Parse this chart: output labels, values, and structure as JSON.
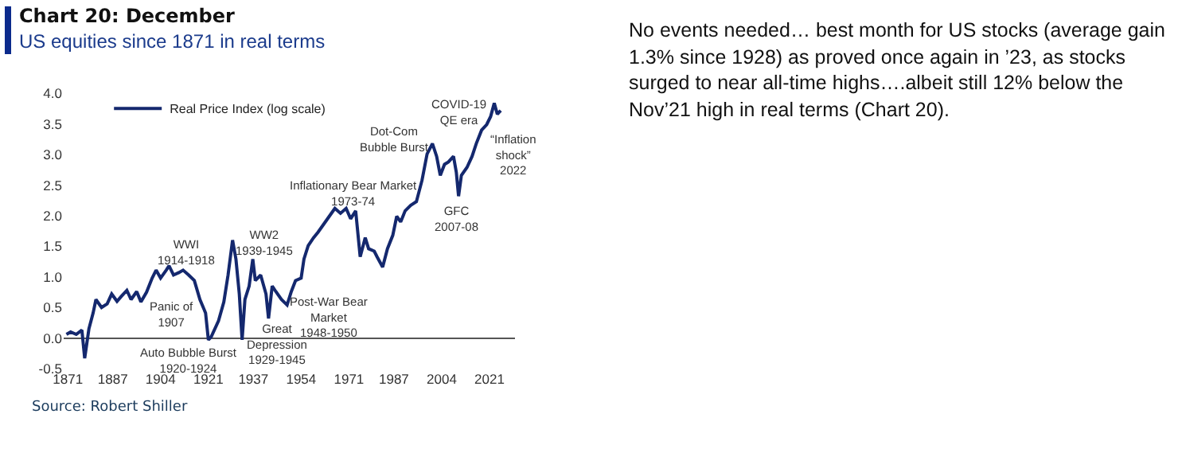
{
  "chart_data": {
    "type": "line",
    "title": "Chart 20: December",
    "subtitle": "US equities since 1871 in real terms",
    "x": [
      1870.5,
      1872,
      1874,
      1876,
      1877,
      1878.5,
      1880,
      1881,
      1883,
      1885,
      1886.6,
      1888.5,
      1890,
      1892,
      1893.5,
      1895.5,
      1897,
      1899,
      1901,
      1902.4,
      1904,
      1906,
      1907,
      1908.6,
      1910.5,
      1912,
      1914,
      1916,
      1918,
      1920,
      1921,
      1922,
      1924.6,
      1926.5,
      1928,
      1929.6,
      1930.8,
      1932,
      1933,
      1934,
      1935.5,
      1936.8,
      1937.7,
      1939.6,
      1941.5,
      1942.4,
      1943.7,
      1945,
      1947,
      1949,
      1950.5,
      1952,
      1954,
      1955,
      1956.5,
      1958.4,
      1960,
      1962,
      1964,
      1966,
      1968,
      1970,
      1971.6,
      1973.4,
      1975,
      1976.8,
      1978,
      1980,
      1981,
      1983,
      1984.7,
      1986.6,
      1988,
      1989.4,
      1991,
      1993,
      1995,
      1997,
      1998.8,
      2000.7,
      2002.2,
      2003.5,
      2005,
      2006.4,
      2008.2,
      2009.2,
      2010,
      2011,
      2013,
      2014.8,
      2016.3,
      2018.2,
      2020,
      2021.4,
      2022.7,
      2023.8,
      2025
    ],
    "series": [
      {
        "name": "Real Price Index (log scale)",
        "color": "#14286e",
        "values": [
          0.06,
          0.1,
          0.06,
          0.13,
          -0.33,
          0.15,
          0.41,
          0.63,
          0.5,
          0.56,
          0.72,
          0.6,
          0.68,
          0.78,
          0.63,
          0.76,
          0.59,
          0.75,
          0.98,
          1.11,
          0.98,
          1.11,
          1.18,
          1.03,
          1.07,
          1.11,
          1.03,
          0.94,
          0.63,
          0.41,
          -0.03,
          0.02,
          0.28,
          0.59,
          1.03,
          1.6,
          1.29,
          0.72,
          -0.03,
          0.63,
          0.85,
          1.29,
          0.94,
          1.03,
          0.72,
          0.32,
          0.85,
          0.76,
          0.63,
          0.54,
          0.76,
          0.94,
          0.98,
          1.29,
          1.51,
          1.64,
          1.73,
          1.86,
          1.99,
          2.12,
          2.04,
          2.12,
          1.95,
          2.08,
          1.33,
          1.64,
          1.46,
          1.42,
          1.33,
          1.16,
          1.46,
          1.68,
          1.99,
          1.9,
          2.08,
          2.17,
          2.23,
          2.58,
          3.01,
          3.18,
          2.97,
          2.66,
          2.84,
          2.88,
          2.97,
          2.71,
          2.32,
          2.66,
          2.79,
          2.97,
          3.18,
          3.4,
          3.49,
          3.62,
          3.84,
          3.66,
          3.72
        ]
      }
    ],
    "xlim": [
      1869.5,
      2030
    ],
    "xticks": [
      1871,
      1887,
      1904,
      1921,
      1937,
      1954,
      1971,
      1987,
      2004,
      2021
    ],
    "ylim": [
      -0.5,
      4.0
    ],
    "yticks": [
      -0.5,
      {
        "value": 0,
        "label": "0.0"
      },
      0.5,
      {
        "value": 1,
        "label": "1.0"
      },
      1.5,
      {
        "value": 2,
        "label": "2.0"
      },
      2.5,
      {
        "value": 3,
        "label": "3.0"
      },
      3.5,
      {
        "value": 4,
        "label": "4.0"
      }
    ],
    "legend": "top left",
    "grid": false,
    "marker": "none",
    "line_style": "solid",
    "annotations": [
      "WWI\n1914-1918",
      "Panic of\n1907",
      "Auto Bubble Burst\n1920-1924",
      "WW2\n1939-1945",
      "Great\nDepression\n1929-1945",
      "Post-War Bear\nMarket\n1948-1950",
      "Inflationary Bear Market\n1973-74",
      "Dot-Com\nBubble Burst",
      "COVID-19\nQE era",
      "“Inflation\nshock”\n2022",
      "GFC\n2007-08",
      "Source: Robert Shiller",
      "No events needed… best month for US stocks (average gain 1.3% since 1928) as proved once again in ’23, as stocks surged to near all-time highs….albeit still 12% below the Nov’21 high in real terms (Chart 20)."
    ]
  }
}
